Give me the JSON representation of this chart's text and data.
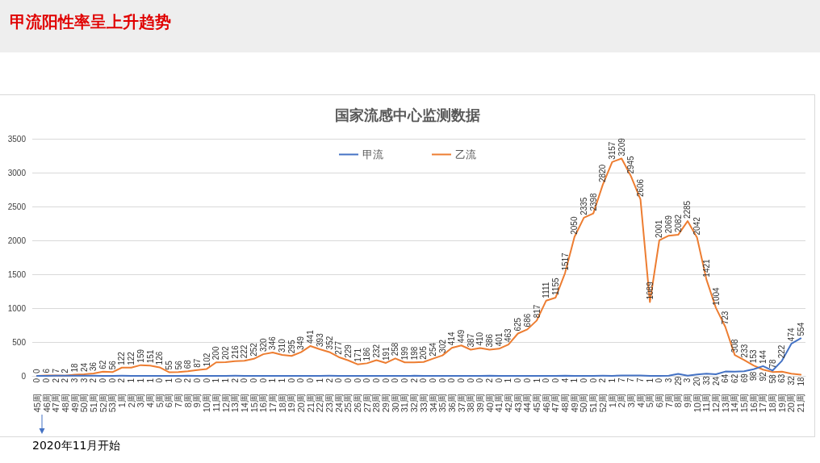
{
  "chart_data": {
    "type": "line",
    "title": "国家流感中心监测数据",
    "annotations": [
      "甲流阳性率呈上升趋势",
      "2020年11月开始"
    ],
    "categories": [
      "45周",
      "46周",
      "47周",
      "48周",
      "49周",
      "50周",
      "51周",
      "52周",
      "53周",
      "1周",
      "2周",
      "3周",
      "4周",
      "5周",
      "6周",
      "7周",
      "8周",
      "9周",
      "10周",
      "11周",
      "12周",
      "13周",
      "14周",
      "15周",
      "16周",
      "17周",
      "18周",
      "19周",
      "20周",
      "21周",
      "22周",
      "23周",
      "24周",
      "25周",
      "26周",
      "27周",
      "28周",
      "29周",
      "30周",
      "31周",
      "32周",
      "33周",
      "34周",
      "35周",
      "36周",
      "37周",
      "38周",
      "39周",
      "40周",
      "41周",
      "42周",
      "43周",
      "44周",
      "45周",
      "46周",
      "47周",
      "48周",
      "49周",
      "50周",
      "51周",
      "52周",
      "1周",
      "2周",
      "3周",
      "4周",
      "5周",
      "6周",
      "7周",
      "8周",
      "9周",
      "10周",
      "11周",
      "12周",
      "13周",
      "14周",
      "15周",
      "16周",
      "17周",
      "18周",
      "19周",
      "20周",
      "21周"
    ],
    "series": [
      {
        "name": "甲流",
        "color": "#4472c4",
        "values": [
          0,
          0,
          2,
          2,
          3,
          3,
          2,
          0,
          0,
          2,
          1,
          1,
          1,
          0,
          1,
          0,
          2,
          0,
          0,
          1,
          1,
          2,
          0,
          0,
          0,
          1,
          1,
          0,
          0,
          0,
          1,
          2,
          0,
          0,
          0,
          0,
          0,
          0,
          0,
          0,
          2,
          0,
          0,
          0,
          0,
          0,
          0,
          0,
          2,
          0,
          1,
          0,
          0,
          1,
          0,
          0,
          4,
          1,
          0,
          0,
          2,
          1,
          7,
          7,
          7,
          1,
          0,
          3,
          29,
          3,
          20,
          33,
          24,
          64,
          62,
          69,
          98,
          144,
          78,
          222,
          474,
          554
        ]
      },
      {
        "name": "乙流",
        "color": "#ed7d31",
        "values": [
          0,
          6,
          7,
          2,
          18,
          24,
          36,
          62,
          56,
          122,
          122,
          159,
          151,
          126,
          55,
          56,
          68,
          87,
          102,
          200,
          202,
          216,
          222,
          252,
          320,
          346,
          310,
          295,
          349,
          441,
          393,
          352,
          277,
          229,
          171,
          186,
          232,
          191,
          258,
          199,
          198,
          205,
          254,
          302,
          414,
          449,
          387,
          410,
          386,
          401,
          463,
          625,
          686,
          817,
          1111,
          1155,
          1517,
          2050,
          2335,
          2398,
          2820,
          3157,
          3209,
          2945,
          2606,
          1089,
          2001,
          2069,
          2082,
          2285,
          2042,
          1421,
          1004,
          723,
          308,
          233,
          153,
          92,
          58,
          63,
          32,
          18
        ]
      }
    ],
    "ylim": [
      0,
      3500
    ],
    "yticks": [
      0,
      500,
      1000,
      1500,
      2000,
      2500,
      3000,
      3500
    ],
    "grid": "y",
    "legend": "top",
    "marker": "none",
    "line_style": "solid",
    "data_labels": true
  }
}
